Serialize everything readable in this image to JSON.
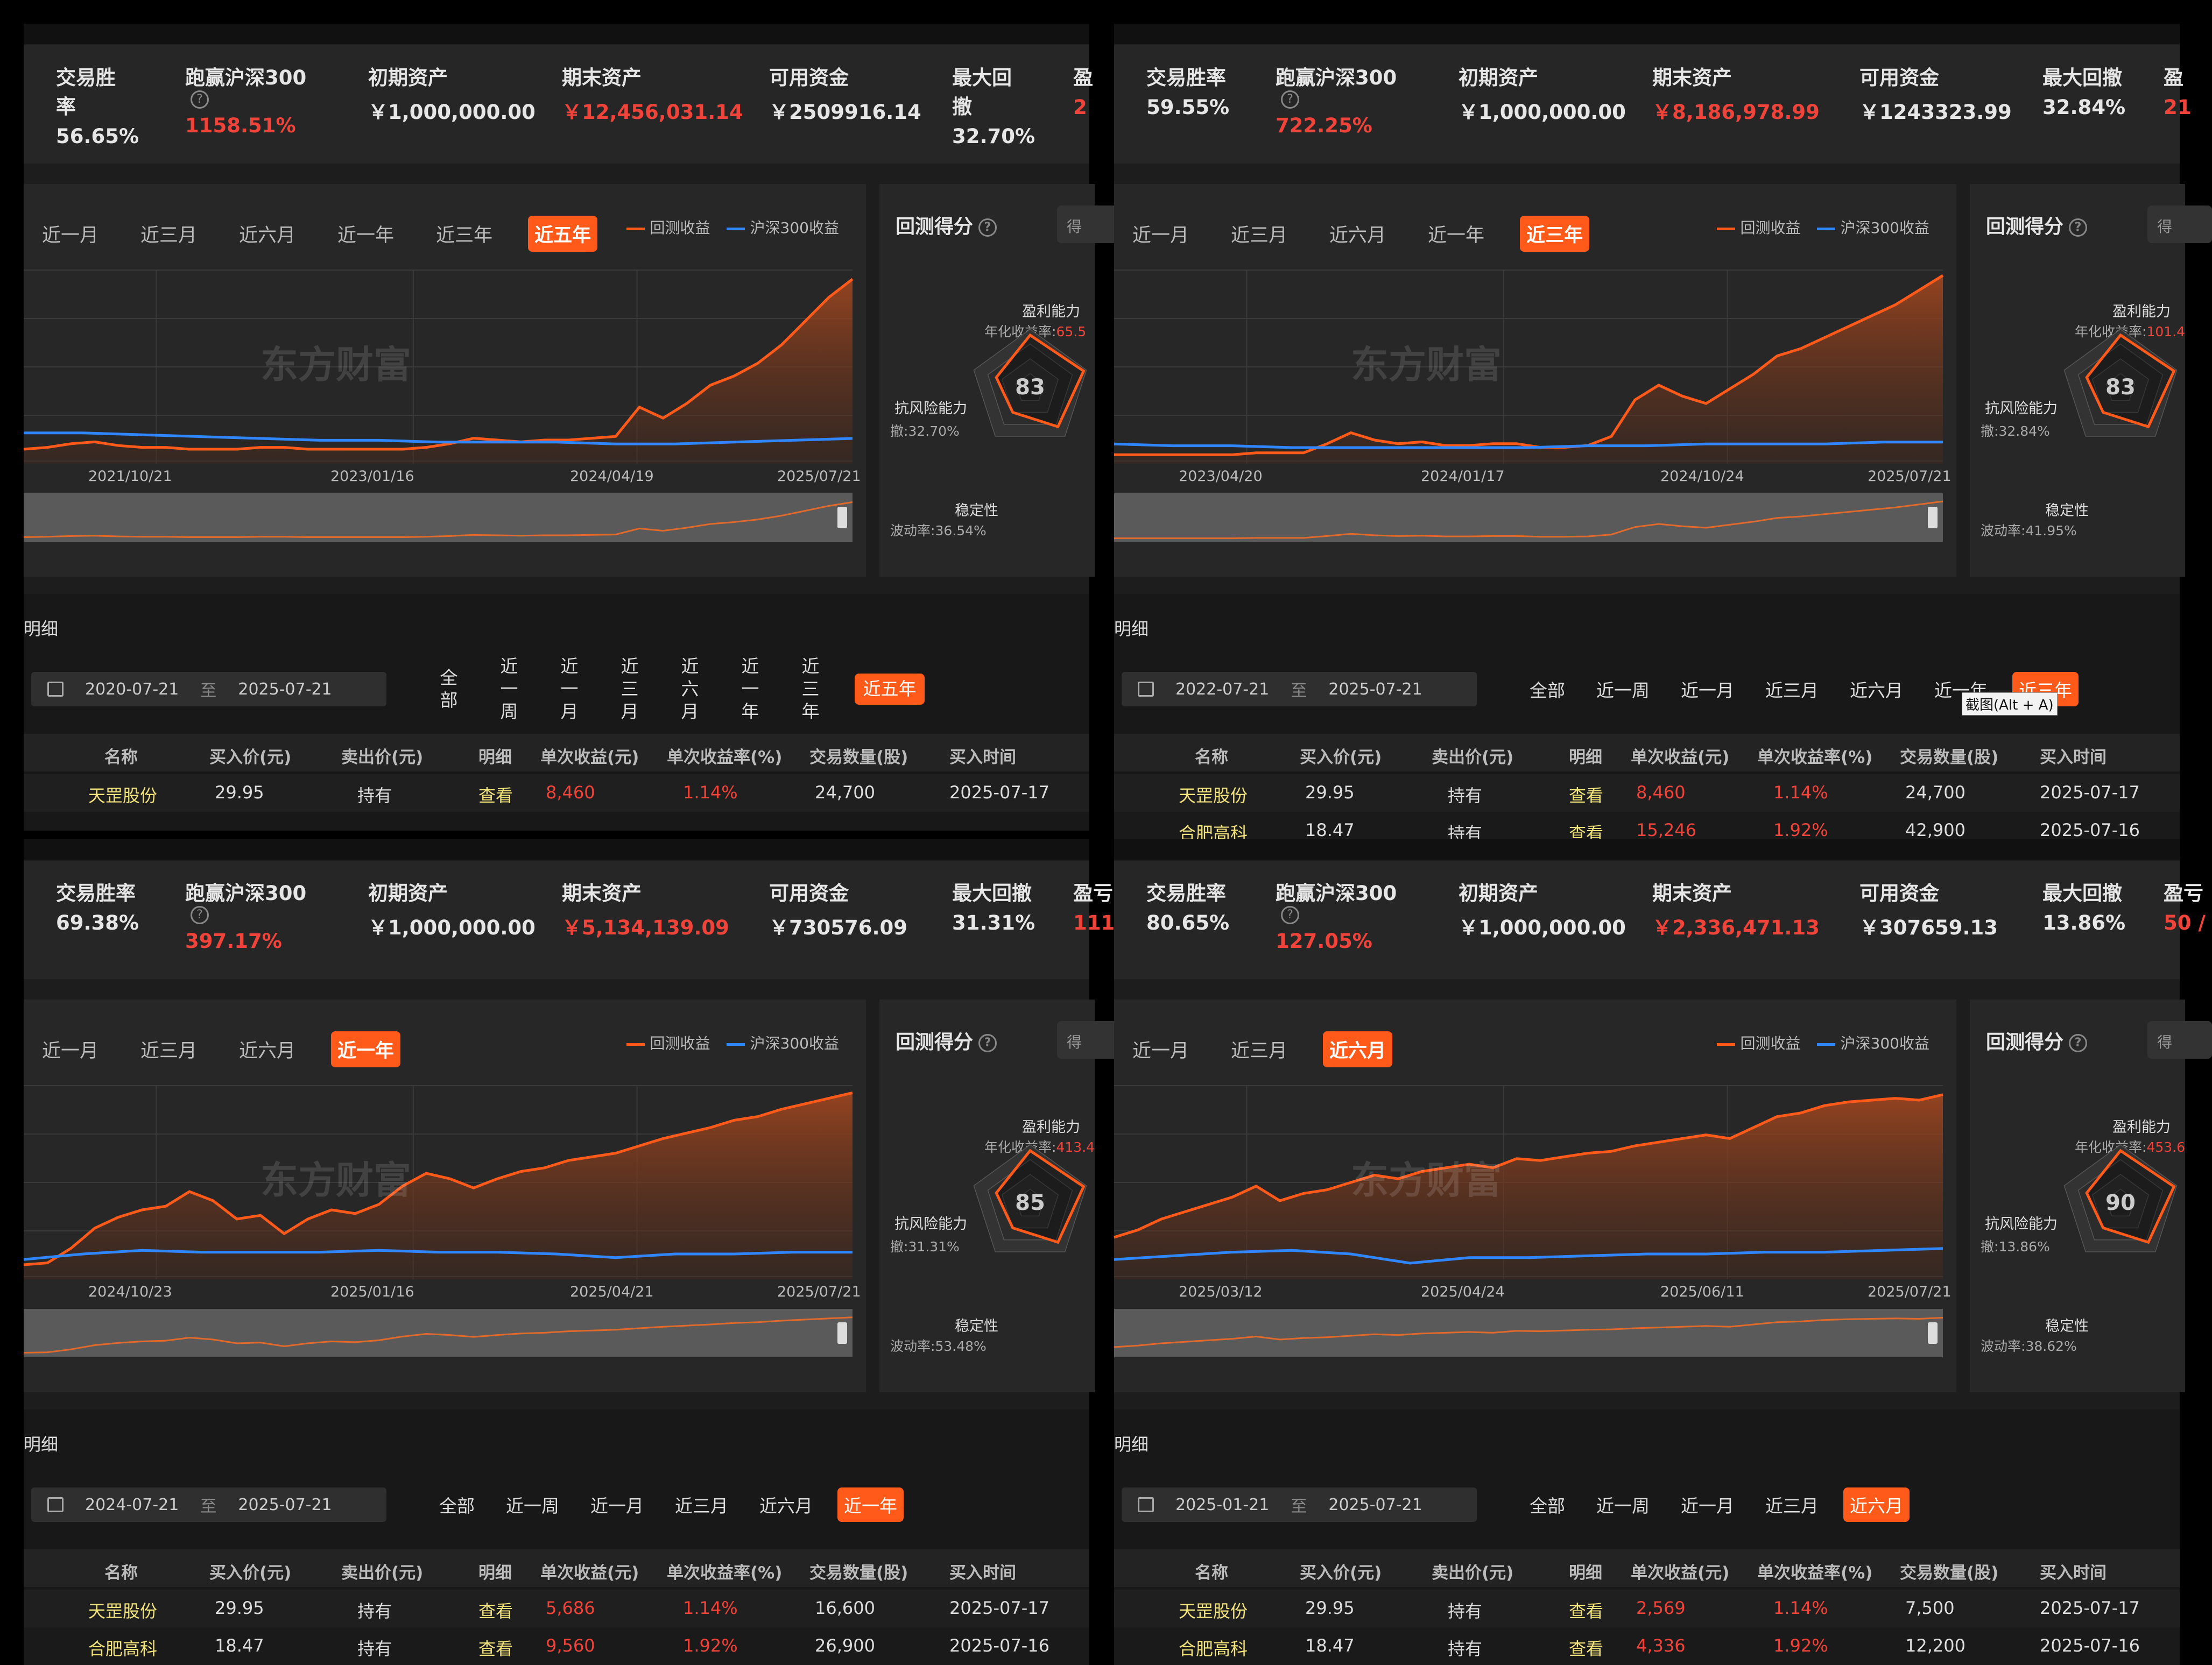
{
  "common": {
    "legend_backtest": "回测收益",
    "legend_hs300": "沪深300收益",
    "watermark": "东方财富",
    "score_title": "回测得分",
    "score_btn": "得",
    "profit_label": "盈利能力",
    "annual_label": "年化收益率:",
    "risk_label": "抗风险能力",
    "drawdown_label": "撤:",
    "stability_label": "稳定性",
    "volatility_label": "波动率:",
    "detail_title": "明细",
    "to_label": "至",
    "headers": [
      "名称",
      "买入价(元)",
      "卖出价(元)",
      "明细",
      "单次收益(元)",
      "单次收益率(%)",
      "交易数量(股)",
      "买入时间"
    ],
    "metric_labels": [
      "交易胜率",
      "跑赢沪深300",
      "初期资产",
      "期末资产",
      "可用资金",
      "最大回撤",
      "盈亏"
    ],
    "chart_tabs": [
      "近一月",
      "近三月",
      "近六月",
      "近一年",
      "近三年",
      "近五年"
    ],
    "period_tabs": [
      "全部",
      "近一周",
      "近一月",
      "近三月",
      "近六月",
      "近一年",
      "近三年",
      "近五年"
    ],
    "colors": {
      "accent": "#ff5a1a",
      "backtest_line": "#ff5a1a",
      "hs300_line": "#2f86ff",
      "red": "#f0443a",
      "green": "#1ec85a"
    }
  },
  "tooltip": "截图(Alt + A)",
  "panels": [
    {
      "metrics": {
        "win_rate_label": "交易胜\n率",
        "win_rate": "56.65%",
        "beat": "1158.51%",
        "initial": "￥1,000,000.00",
        "final": "￥12,456,031.14",
        "cash": "￥2509916.14",
        "max_dd_label": "最大回\n撤",
        "max_dd": "32.70%",
        "pnl_fragment": "盈",
        "pnl_value": "2"
      },
      "active_chart_tab": "近五年",
      "chart_dates": [
        "2021/10/21",
        "2023/01/16",
        "2024/04/19",
        "2025/07/21"
      ],
      "score": "83",
      "annual": "65.5",
      "drawdown": "32.70%",
      "volatility": "36.54%",
      "date_from": "2020-07-21",
      "date_to": "2025-07-21",
      "active_period": "近五年",
      "rows": [
        {
          "name": "天罡股份",
          "buy": "29.95",
          "sell": "持有",
          "view": "查看",
          "profit": "8,460",
          "rate": "1.14%",
          "qty": "24,700",
          "time": "2025-07-17"
        }
      ]
    },
    {
      "metrics": {
        "win_rate_label": "交易胜率",
        "win_rate": "59.55%",
        "beat": "722.25%",
        "initial": "￥1,000,000.00",
        "final": "￥8,186,978.99",
        "cash": "￥1243323.99",
        "max_dd_label": "最大回撤",
        "max_dd": "32.84%",
        "pnl_fragment": "盈",
        "pnl_value": "21"
      },
      "active_chart_tab": "近三年",
      "chart_dates": [
        "2023/04/20",
        "2024/01/17",
        "2024/10/24",
        "2025/07/21"
      ],
      "score": "83",
      "annual": "101.4",
      "drawdown": "32.84%",
      "volatility": "41.95%",
      "date_from": "2022-07-21",
      "date_to": "2025-07-21",
      "active_period": "近三年",
      "rows": [
        {
          "name": "天罡股份",
          "buy": "29.95",
          "sell": "持有",
          "view": "查看",
          "profit": "8,460",
          "rate": "1.14%",
          "qty": "24,700",
          "time": "2025-07-17"
        },
        {
          "name": "合肥高科",
          "buy": "18.47",
          "sell": "持有",
          "view": "查看",
          "profit": "15,246",
          "rate": "1.92%",
          "qty": "42,900",
          "time": "2025-07-16"
        }
      ]
    },
    {
      "metrics": {
        "win_rate_label": "交易胜率",
        "win_rate": "69.38%",
        "beat": "397.17%",
        "initial": "￥1,000,000.00",
        "final": "￥5,134,139.09",
        "cash": "￥730576.09",
        "max_dd_label": "最大回撤",
        "max_dd": "31.31%",
        "pnl_fragment": "盈亏",
        "pnl_value": "111"
      },
      "active_chart_tab": "近一年",
      "chart_dates": [
        "2024/10/23",
        "2025/01/16",
        "2025/04/21",
        "2025/07/21"
      ],
      "score": "85",
      "annual": "413.4",
      "drawdown": "31.31%",
      "volatility": "53.48%",
      "date_from": "2024-07-21",
      "date_to": "2025-07-21",
      "active_period": "近一年",
      "rows": [
        {
          "name": "天罡股份",
          "buy": "29.95",
          "sell": "持有",
          "view": "查看",
          "profit": "5,686",
          "rate": "1.14%",
          "qty": "16,600",
          "time": "2025-07-17"
        },
        {
          "name": "合肥高科",
          "buy": "18.47",
          "sell": "持有",
          "view": "查看",
          "profit": "9,560",
          "rate": "1.92%",
          "qty": "26,900",
          "time": "2025-07-16"
        }
      ]
    },
    {
      "metrics": {
        "win_rate_label": "交易胜率",
        "win_rate": "80.65%",
        "beat": "127.05%",
        "initial": "￥1,000,000.00",
        "final": "￥2,336,471.13",
        "cash": "￥307659.13",
        "max_dd_label": "最大回撤",
        "max_dd": "13.86%",
        "pnl_fragment": "盈亏",
        "pnl_value": "50 /"
      },
      "active_chart_tab": "近六月",
      "chart_dates": [
        "2025/03/12",
        "2025/04/24",
        "2025/06/11",
        "2025/07/21"
      ],
      "score": "90",
      "annual": "453.6",
      "drawdown": "13.86%",
      "volatility": "38.62%",
      "date_from": "2025-01-21",
      "date_to": "2025-07-21",
      "active_period": "近六月",
      "rows": [
        {
          "name": "天罡股份",
          "buy": "29.95",
          "sell": "持有",
          "view": "查看",
          "profit": "2,569",
          "rate": "1.14%",
          "qty": "7,500",
          "time": "2025-07-17"
        },
        {
          "name": "合肥高科",
          "buy": "18.47",
          "sell": "持有",
          "view": "查看",
          "profit": "4,336",
          "rate": "1.92%",
          "qty": "12,200",
          "time": "2025-07-16"
        }
      ]
    }
  ]
}
